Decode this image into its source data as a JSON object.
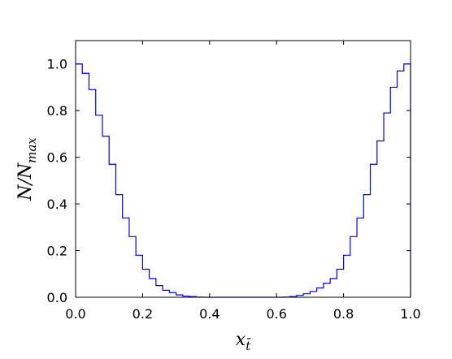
{
  "chart_data": {
    "type": "line",
    "subtype": "step-histogram",
    "title": "",
    "xlabel": "x_t̄",
    "ylabel": "N/N_max",
    "xlim": [
      0.0,
      1.0
    ],
    "ylim": [
      0.0,
      1.1
    ],
    "x_ticks": [
      "0.0",
      "0.2",
      "0.4",
      "0.6",
      "0.8",
      "1.0"
    ],
    "y_ticks": [
      "0.0",
      "0.2",
      "0.4",
      "0.6",
      "0.8",
      "1.0"
    ],
    "grid": false,
    "legend": "none",
    "line_color": "#0000ff",
    "bin_width": 0.02,
    "series": [
      {
        "bins_start": [
          0.0,
          0.02,
          0.04,
          0.06,
          0.08,
          0.1,
          0.12,
          0.14,
          0.16,
          0.18,
          0.2,
          0.22,
          0.24,
          0.26,
          0.28,
          0.3,
          0.32,
          0.34,
          0.36,
          0.38,
          0.4,
          0.42,
          0.44,
          0.46,
          0.48,
          0.5,
          0.52,
          0.54,
          0.56,
          0.58,
          0.6,
          0.62,
          0.64,
          0.66,
          0.68,
          0.7,
          0.72,
          0.74,
          0.76,
          0.78,
          0.8,
          0.82,
          0.84,
          0.86,
          0.88,
          0.9,
          0.92,
          0.94,
          0.96,
          0.98
        ],
        "values": [
          1.0,
          0.96,
          0.89,
          0.78,
          0.69,
          0.57,
          0.44,
          0.34,
          0.26,
          0.18,
          0.12,
          0.08,
          0.05,
          0.03,
          0.02,
          0.01,
          0.005,
          0.003,
          0.001,
          0.0,
          0.0,
          0.0,
          0.0,
          0.0,
          0.0,
          0.0,
          0.0,
          0.0,
          0.0,
          0.0,
          0.0,
          0.001,
          0.003,
          0.008,
          0.015,
          0.025,
          0.04,
          0.06,
          0.08,
          0.12,
          0.18,
          0.26,
          0.34,
          0.44,
          0.57,
          0.67,
          0.79,
          0.9,
          0.97,
          1.0
        ]
      }
    ]
  }
}
